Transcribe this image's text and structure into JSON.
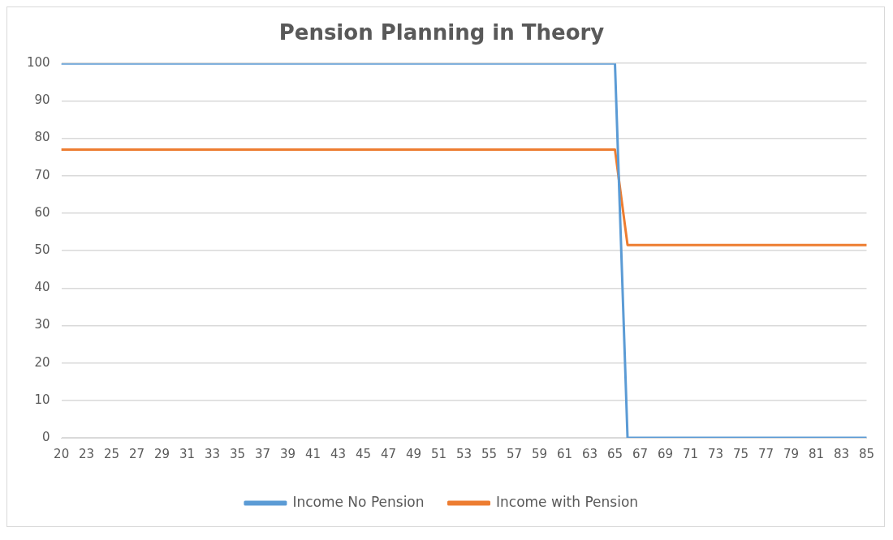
{
  "chart_data": {
    "type": "line",
    "title": "Pension Planning in Theory",
    "categories": [
      "20",
      null,
      "23",
      null,
      "25",
      null,
      "27",
      null,
      "29",
      null,
      "31",
      null,
      "33",
      null,
      "35",
      null,
      "37",
      null,
      "39",
      null,
      "41",
      null,
      "43",
      null,
      "45",
      null,
      "47",
      null,
      "49",
      null,
      "51",
      null,
      "53",
      null,
      "55",
      null,
      "57",
      null,
      "59",
      null,
      "61",
      null,
      "63",
      null,
      "65",
      null,
      "67",
      null,
      "69",
      null,
      "71",
      null,
      "73",
      null,
      "75",
      null,
      "77",
      null,
      "79",
      null,
      "81",
      null,
      "83",
      null,
      "85"
    ],
    "series": [
      {
        "name": "Income No Pension",
        "color": "#5b9bd5",
        "values": [
          100,
          100,
          100,
          100,
          100,
          100,
          100,
          100,
          100,
          100,
          100,
          100,
          100,
          100,
          100,
          100,
          100,
          100,
          100,
          100,
          100,
          100,
          100,
          100,
          100,
          100,
          100,
          100,
          100,
          100,
          100,
          100,
          100,
          100,
          100,
          100,
          100,
          100,
          100,
          100,
          100,
          100,
          100,
          100,
          100,
          0,
          0,
          0,
          0,
          0,
          0,
          0,
          0,
          0,
          0,
          0,
          0,
          0,
          0,
          0,
          0,
          0,
          0,
          0,
          0
        ]
      },
      {
        "name": "Income with Pension",
        "color": "#ed7d31",
        "values": [
          77,
          77,
          77,
          77,
          77,
          77,
          77,
          77,
          77,
          77,
          77,
          77,
          77,
          77,
          77,
          77,
          77,
          77,
          77,
          77,
          77,
          77,
          77,
          77,
          77,
          77,
          77,
          77,
          77,
          77,
          77,
          77,
          77,
          77,
          77,
          77,
          77,
          77,
          77,
          77,
          77,
          77,
          77,
          77,
          77,
          51.5,
          51.5,
          51.5,
          51.5,
          51.5,
          51.5,
          51.5,
          51.5,
          51.5,
          51.5,
          51.5,
          51.5,
          51.5,
          51.5,
          51.5,
          51.5,
          51.5,
          51.5,
          51.5,
          51.5
        ]
      }
    ],
    "ylim": [
      0,
      100
    ],
    "yticks": [
      0,
      10,
      20,
      30,
      40,
      50,
      60,
      70,
      80,
      90,
      100
    ],
    "grid": "y",
    "legend": "bottom",
    "marker": "none",
    "line_style": "solid"
  }
}
